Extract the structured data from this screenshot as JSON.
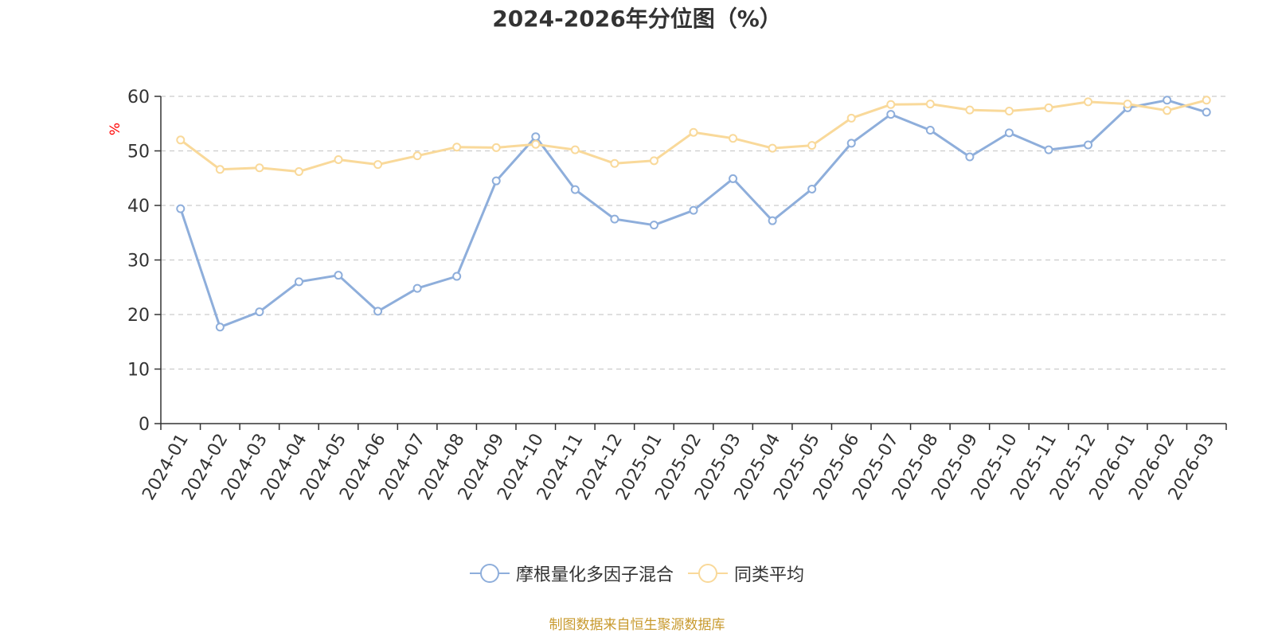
{
  "chart_data": {
    "type": "line",
    "title": "2024-2026年分位图（%）",
    "ylabel": "%",
    "xlabel": "",
    "ylim": [
      0,
      60
    ],
    "yticks": [
      0,
      10,
      20,
      30,
      40,
      50,
      60
    ],
    "grid": true,
    "legend_position": "bottom",
    "categories": [
      "2024-01",
      "2024-02",
      "2024-03",
      "2024-04",
      "2024-05",
      "2024-06",
      "2024-07",
      "2024-08",
      "2024-09",
      "2024-10",
      "2024-11",
      "2024-12",
      "2025-01",
      "2025-02",
      "2025-03",
      "2025-04",
      "2025-05",
      "2025-06",
      "2025-07",
      "2025-08",
      "2025-09",
      "2025-10",
      "2025-11",
      "2025-12",
      "2026-01",
      "2026-02",
      "2026-03"
    ],
    "series": [
      {
        "name": "摩根量化多因子混合",
        "color": "#8eaedb",
        "values": [
          39.4,
          17.7,
          20.5,
          26.0,
          27.2,
          20.6,
          24.8,
          27.0,
          44.5,
          52.6,
          42.9,
          37.5,
          36.4,
          39.1,
          44.9,
          37.2,
          43.0,
          51.4,
          56.7,
          53.8,
          48.9,
          53.3,
          50.2,
          51.1,
          57.9,
          59.3,
          57.1
        ]
      },
      {
        "name": "同类平均",
        "color": "#f9d99a",
        "values": [
          52.0,
          46.6,
          46.9,
          46.2,
          48.4,
          47.5,
          49.1,
          50.7,
          50.6,
          51.2,
          50.2,
          47.7,
          48.2,
          53.4,
          52.3,
          50.5,
          51.0,
          56.0,
          58.5,
          58.6,
          57.5,
          57.3,
          57.9,
          59.0,
          58.6,
          57.4,
          59.3
        ]
      }
    ]
  },
  "legend": {
    "items": [
      {
        "label": "摩根量化多因子混合"
      },
      {
        "label": "同类平均"
      }
    ]
  },
  "source": "制图数据来自恒生聚源数据库",
  "colors": {
    "axis": "#333333",
    "grid": "#cccccc",
    "ylabel": "#ff0000",
    "source": "#c89a2e"
  }
}
